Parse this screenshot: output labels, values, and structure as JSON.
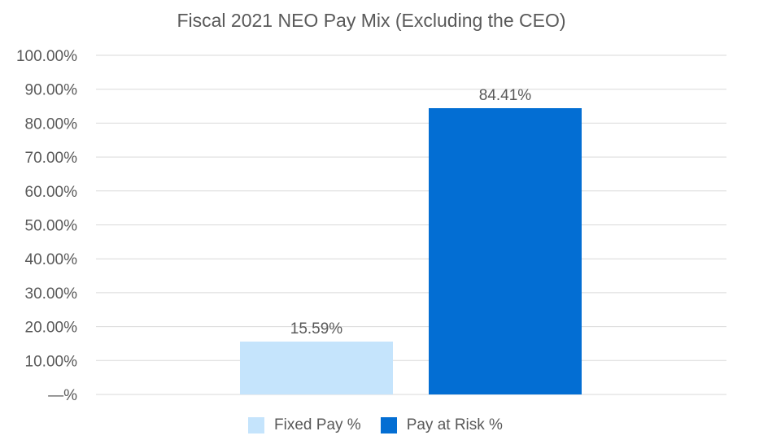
{
  "chart_data": {
    "type": "bar",
    "title": "Fiscal 2021 NEO Pay Mix (Excluding the CEO)",
    "categories": [
      "Fixed Pay %",
      "Pay at Risk %"
    ],
    "values": [
      15.59,
      84.41
    ],
    "data_labels": [
      "15.59%",
      "84.41%"
    ],
    "colors": [
      "#c5e4fc",
      "#036ed3"
    ],
    "ylim": [
      0,
      100
    ],
    "y_ticks": [
      0,
      10,
      20,
      30,
      40,
      50,
      60,
      70,
      80,
      90,
      100
    ],
    "y_tick_labels": [
      "—%",
      "10.00%",
      "20.00%",
      "30.00%",
      "40.00%",
      "50.00%",
      "60.00%",
      "70.00%",
      "80.00%",
      "90.00%",
      "100.00%"
    ],
    "grid": true,
    "legend_position": "bottom",
    "legend": [
      {
        "label": "Fixed Pay %",
        "color": "#c5e4fc"
      },
      {
        "label": "Pay at Risk %",
        "color": "#036ed3"
      }
    ],
    "gridline_color": "#d9d9d9"
  }
}
